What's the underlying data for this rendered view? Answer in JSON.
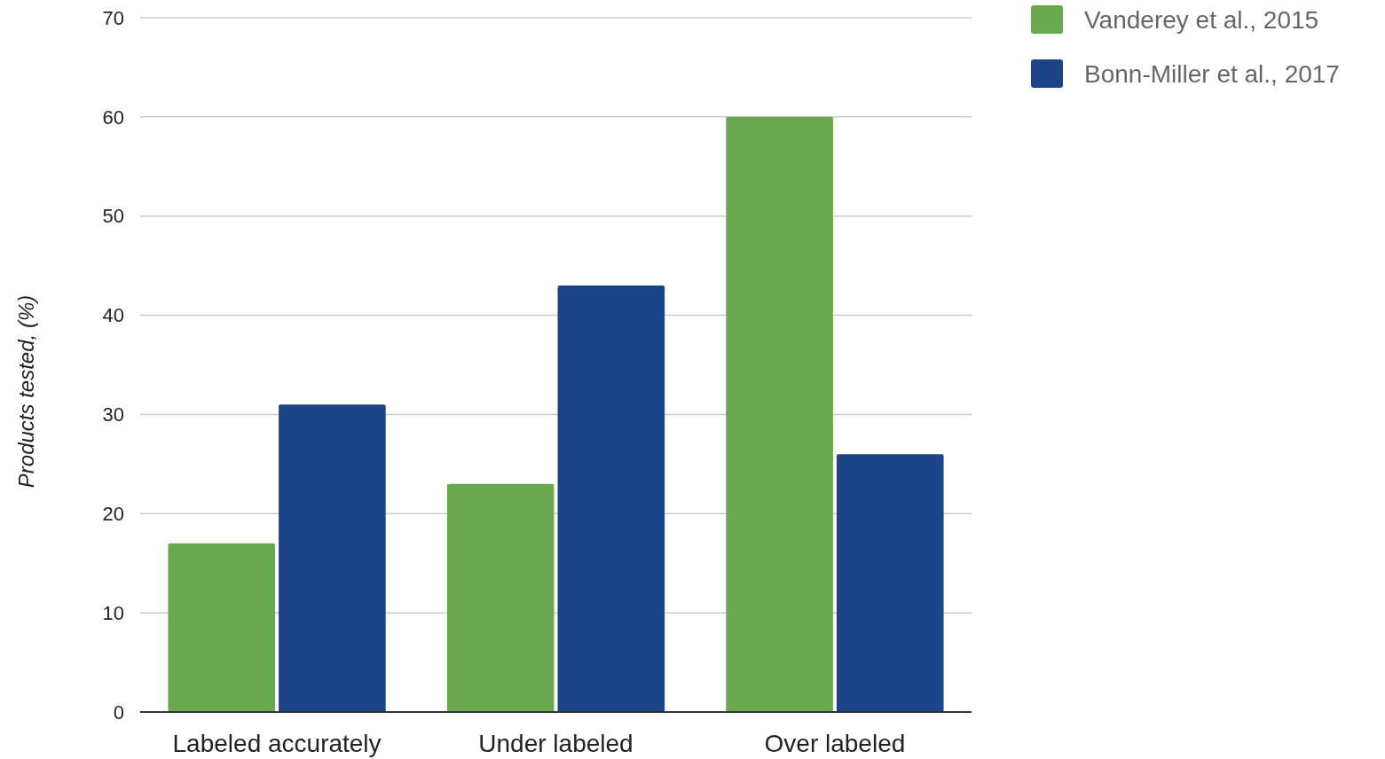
{
  "chart_data": {
    "type": "bar",
    "ylabel": "Products tested, (%)",
    "categories": [
      "Labeled accurately",
      "Under labeled",
      "Over labeled"
    ],
    "series": [
      {
        "name": "Vanderey et al., 2015",
        "color": "#6aa84f",
        "values": [
          17,
          23,
          60
        ]
      },
      {
        "name": "Bonn-Miller et al., 2017",
        "color": "#1c4587",
        "values": [
          31,
          43,
          26
        ]
      }
    ],
    "ylim": [
      0,
      70
    ],
    "yticks": [
      0,
      10,
      20,
      30,
      40,
      50,
      60,
      70
    ],
    "grid": "y",
    "legend": "top right"
  }
}
